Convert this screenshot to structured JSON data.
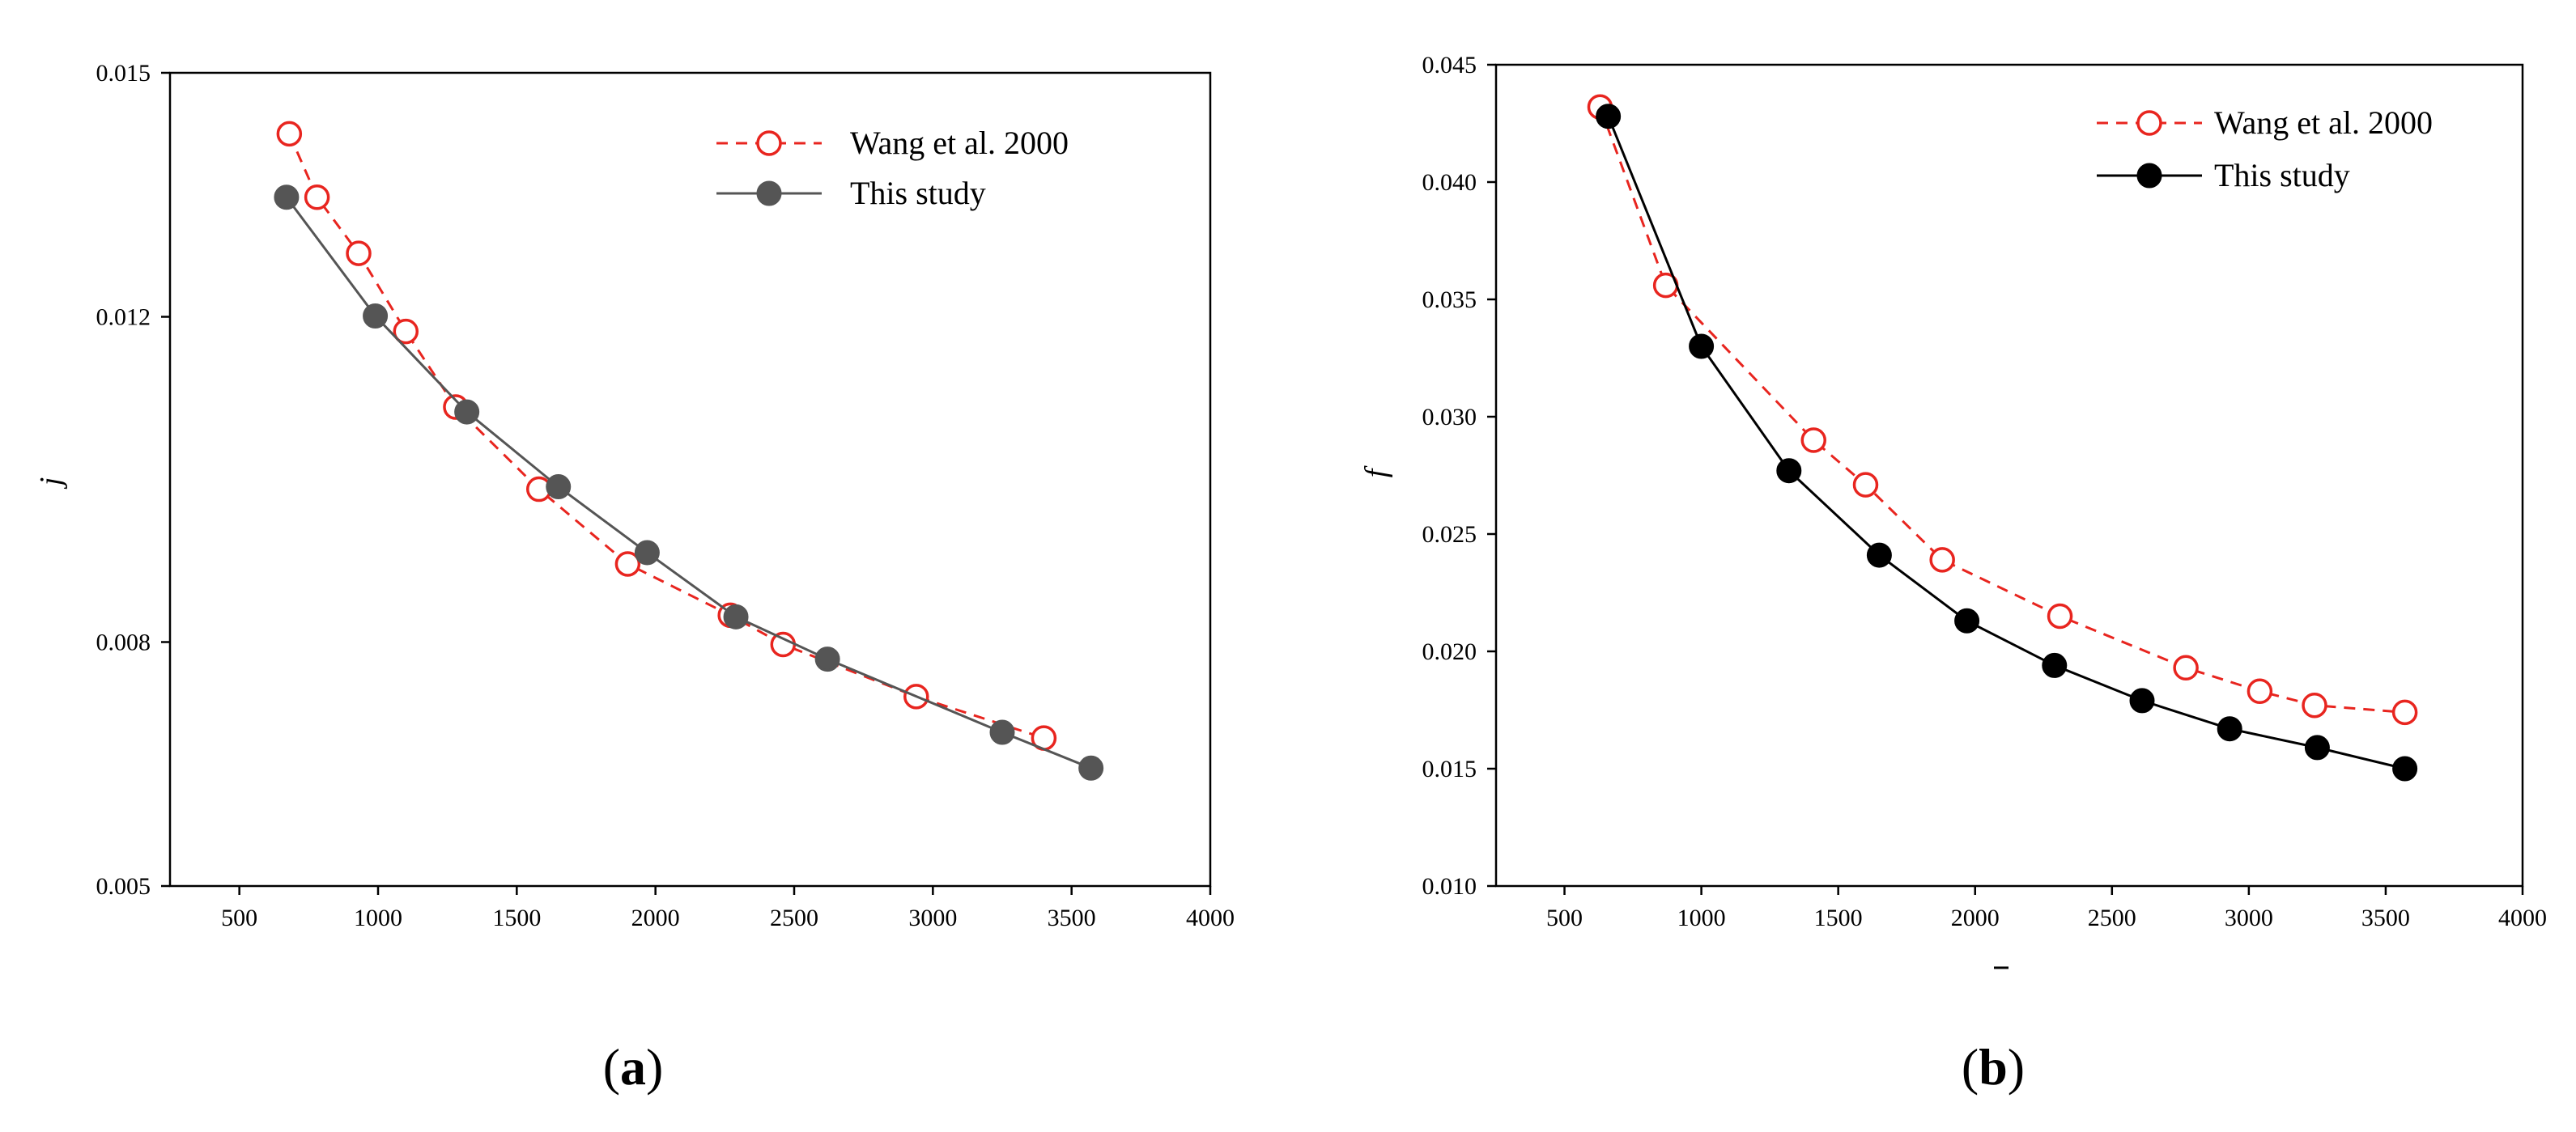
{
  "figure": {
    "panels": [
      "a",
      "b"
    ]
  },
  "chart_data": [
    {
      "panel": "a",
      "panel_label": "a",
      "type": "line",
      "xlabel": "",
      "ylabel": "j",
      "xlim": [
        250,
        4000
      ],
      "ylim": [
        0.005,
        0.015
      ],
      "xticks": [
        500,
        1000,
        1500,
        2000,
        2500,
        3000,
        3500,
        4000
      ],
      "xtick_labels": [
        "500",
        "1000",
        "1500",
        "2000",
        "2500",
        "3000",
        "3500",
        "4000"
      ],
      "yticks": [
        0.005,
        0.008,
        0.012,
        0.015
      ],
      "ytick_labels": [
        "0.005",
        "0.008",
        "0.012",
        "0.015"
      ],
      "legend_position": "top-right",
      "series": [
        {
          "name": "Wang et al. 2000",
          "marker": "open-circle",
          "line": "dashed",
          "color": "#e8251f",
          "x": [
            680,
            780,
            930,
            1100,
            1280,
            1580,
            1900,
            2270,
            2460,
            2940,
            3400
          ],
          "y": [
            0.01425,
            0.01347,
            0.01278,
            0.01182,
            0.01089,
            0.00988,
            0.00896,
            0.00833,
            0.00797,
            0.00733,
            0.00682
          ]
        },
        {
          "name": "This study",
          "marker": "filled-circle",
          "line": "solid",
          "color": "#555555",
          "x": [
            670,
            990,
            1320,
            1650,
            1970,
            2290,
            2620,
            3250,
            3570
          ],
          "y": [
            0.01347,
            0.01201,
            0.01083,
            0.00991,
            0.0091,
            0.00831,
            0.00779,
            0.00689,
            0.00645
          ]
        }
      ]
    },
    {
      "panel": "b",
      "panel_label": "b",
      "type": "line",
      "xlabel": "",
      "ylabel": "f",
      "xlim": [
        250,
        4000
      ],
      "ylim": [
        0.01,
        0.045
      ],
      "xticks": [
        500,
        1000,
        1500,
        2000,
        2500,
        3000,
        3500,
        4000
      ],
      "xtick_labels": [
        "500",
        "1000",
        "1500",
        "2000",
        "2500",
        "3000",
        "3500",
        "4000"
      ],
      "yticks": [
        0.01,
        0.015,
        0.02,
        0.025,
        0.03,
        0.035,
        0.04,
        0.045
      ],
      "ytick_labels": [
        "0.010",
        "0.015",
        "0.020",
        "0.025",
        "0.030",
        "0.035",
        "0.040",
        "0.045"
      ],
      "legend_position": "top-right",
      "series": [
        {
          "name": "Wang et al. 2000",
          "marker": "open-circle",
          "line": "dashed",
          "color": "#e8251f",
          "x": [
            630,
            870,
            1410,
            1600,
            1880,
            2310,
            2770,
            3040,
            3240,
            3570
          ],
          "y": [
            0.0432,
            0.0356,
            0.029,
            0.0271,
            0.0239,
            0.0215,
            0.0193,
            0.0183,
            0.0177,
            0.0174
          ]
        },
        {
          "name": "This study",
          "marker": "filled-circle",
          "line": "solid",
          "color": "#000000",
          "x": [
            660,
            1000,
            1320,
            1650,
            1970,
            2290,
            2610,
            2930,
            3250,
            3570
          ],
          "y": [
            0.0428,
            0.033,
            0.0277,
            0.0241,
            0.0213,
            0.0194,
            0.0179,
            0.0167,
            0.0159,
            0.015
          ]
        }
      ]
    }
  ]
}
